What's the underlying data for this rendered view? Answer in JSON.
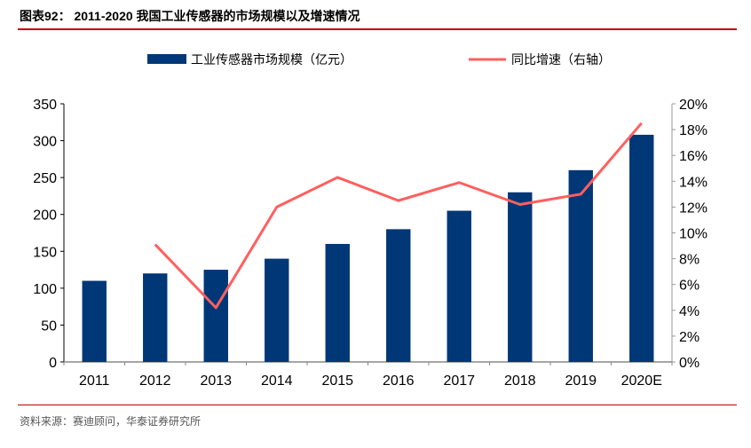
{
  "title": "图表92：  2011-2020 我国工业传感器的市场规模以及增速情况",
  "source": "资料来源：赛迪顾问，华泰证券研究所",
  "colors": {
    "bar": "#003777",
    "line": "#ff5f5f",
    "rule": "#c00000"
  },
  "chart_data": {
    "type": "bar+line",
    "categories": [
      "2011",
      "2012",
      "2013",
      "2014",
      "2015",
      "2016",
      "2017",
      "2018",
      "2019",
      "2020E"
    ],
    "series": [
      {
        "name": "工业传感器市场规模（亿元）",
        "type": "bar",
        "axis": "left",
        "values": [
          110,
          120,
          125,
          140,
          160,
          180,
          205,
          230,
          260,
          308
        ]
      },
      {
        "name": "同比增速（右轴）",
        "type": "line",
        "axis": "right",
        "values": [
          null,
          9.1,
          4.2,
          12.0,
          14.3,
          12.5,
          13.9,
          12.2,
          13.0,
          18.5
        ]
      }
    ],
    "left_axis": {
      "range": [
        0,
        350
      ],
      "ticks": [
        "0",
        "50",
        "100",
        "150",
        "200",
        "250",
        "300",
        "350"
      ]
    },
    "right_axis": {
      "range": [
        0,
        20
      ],
      "ticks": [
        "0%",
        "2%",
        "4%",
        "6%",
        "8%",
        "10%",
        "12%",
        "14%",
        "16%",
        "18%",
        "20%"
      ]
    },
    "legend_position": "top",
    "grid": false
  }
}
